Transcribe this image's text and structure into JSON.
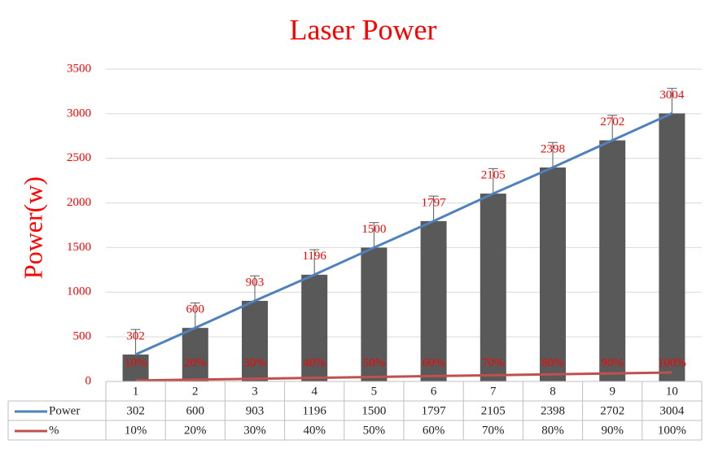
{
  "chart_data": {
    "type": "bar",
    "title": "Laser Power",
    "y_label": "Power(w)",
    "categories": [
      "1",
      "2",
      "3",
      "4",
      "5",
      "6",
      "7",
      "8",
      "9",
      "10"
    ],
    "bar_color": "#595959",
    "series": [
      {
        "name": "Power",
        "color": "#4f81bd",
        "values": [
          302,
          600,
          903,
          1196,
          1500,
          1797,
          2105,
          2398,
          2702,
          3004
        ],
        "error_plus": [
          280,
          280,
          280,
          280,
          280,
          280,
          280,
          280,
          280,
          280
        ]
      },
      {
        "name": "%",
        "color": "#c0504d",
        "values": [
          10,
          20,
          30,
          40,
          50,
          60,
          70,
          80,
          90,
          100
        ],
        "value_labels": [
          "10%",
          "20%",
          "30%",
          "40%",
          "50%",
          "60%",
          "70%",
          "80%",
          "90%",
          "100%"
        ]
      }
    ],
    "ylim": [
      0,
      3500
    ],
    "yticks": [
      0,
      500,
      1000,
      1500,
      2000,
      2500,
      3000,
      3500
    ],
    "grid": true
  }
}
